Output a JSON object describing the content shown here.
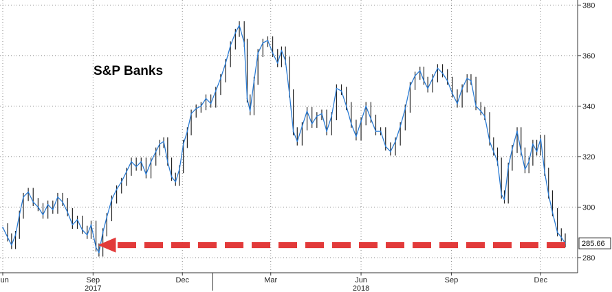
{
  "chart_data": {
    "type": "line",
    "title": "S&P Banks",
    "xlabel": "",
    "ylabel": "",
    "x_range": [
      "2017-06-01",
      "2018-12-26"
    ],
    "ylim": [
      274,
      382
    ],
    "y_ticks": [
      280,
      300,
      320,
      340,
      360,
      380
    ],
    "y_axis_side": "right",
    "grid": true,
    "x_ticks": [
      {
        "date": "2017-06-01",
        "label": "Jun"
      },
      {
        "date": "2017-09-01",
        "label": "Sep"
      },
      {
        "date": "2017-12-01",
        "label": "Dec"
      },
      {
        "date": "2018-03-01",
        "label": "Mar"
      },
      {
        "date": "2018-06-01",
        "label": "Jun"
      },
      {
        "date": "2018-09-01",
        "label": "Sep"
      },
      {
        "date": "2018-12-01",
        "label": "Dec"
      }
    ],
    "year_labels": [
      {
        "date": "2017-09-01",
        "label": "2017"
      },
      {
        "date": "2018-06-01",
        "label": "2018"
      }
    ],
    "series": [
      {
        "color": "#2a7bd4",
        "points": [
          [
            "2017-06-01",
            292
          ],
          [
            "2017-06-06",
            288
          ],
          [
            "2017-06-10",
            285
          ],
          [
            "2017-06-14",
            289
          ],
          [
            "2017-06-18",
            297
          ],
          [
            "2017-06-22",
            304
          ],
          [
            "2017-06-27",
            306
          ],
          [
            "2017-07-02",
            302
          ],
          [
            "2017-07-07",
            300
          ],
          [
            "2017-07-12",
            297
          ],
          [
            "2017-07-17",
            301
          ],
          [
            "2017-07-22",
            299
          ],
          [
            "2017-07-27",
            304
          ],
          [
            "2017-08-01",
            302
          ],
          [
            "2017-08-06",
            298
          ],
          [
            "2017-08-11",
            293
          ],
          [
            "2017-08-16",
            295
          ],
          [
            "2017-08-21",
            291
          ],
          [
            "2017-08-26",
            289
          ],
          [
            "2017-08-30",
            293
          ],
          [
            "2017-09-04",
            284
          ],
          [
            "2017-09-07",
            282
          ],
          [
            "2017-09-11",
            290
          ],
          [
            "2017-09-15",
            296
          ],
          [
            "2017-09-20",
            303
          ],
          [
            "2017-09-25",
            307
          ],
          [
            "2017-09-30",
            310
          ],
          [
            "2017-10-05",
            314
          ],
          [
            "2017-10-10",
            318
          ],
          [
            "2017-10-15",
            316
          ],
          [
            "2017-10-20",
            318
          ],
          [
            "2017-10-25",
            313
          ],
          [
            "2017-10-30",
            318
          ],
          [
            "2017-11-04",
            322
          ],
          [
            "2017-11-08",
            325
          ],
          [
            "2017-11-12",
            326
          ],
          [
            "2017-11-16",
            318
          ],
          [
            "2017-11-20",
            312
          ],
          [
            "2017-11-24",
            310
          ],
          [
            "2017-11-28",
            315
          ],
          [
            "2017-12-02",
            325
          ],
          [
            "2017-12-06",
            330
          ],
          [
            "2017-12-10",
            337
          ],
          [
            "2017-12-15",
            339
          ],
          [
            "2017-12-20",
            340
          ],
          [
            "2017-12-25",
            343
          ],
          [
            "2017-12-30",
            341
          ],
          [
            "2018-01-04",
            346
          ],
          [
            "2018-01-09",
            351
          ],
          [
            "2018-01-14",
            357
          ],
          [
            "2018-01-19",
            364
          ],
          [
            "2018-01-24",
            369
          ],
          [
            "2018-01-28",
            372
          ],
          [
            "2018-02-02",
            365
          ],
          [
            "2018-02-05",
            343
          ],
          [
            "2018-02-08",
            338
          ],
          [
            "2018-02-12",
            350
          ],
          [
            "2018-02-16",
            361
          ],
          [
            "2018-02-21",
            365
          ],
          [
            "2018-02-26",
            366
          ],
          [
            "2018-03-03",
            361
          ],
          [
            "2018-03-08",
            357
          ],
          [
            "2018-03-12",
            362
          ],
          [
            "2018-03-16",
            358
          ],
          [
            "2018-03-20",
            345
          ],
          [
            "2018-03-24",
            330
          ],
          [
            "2018-03-28",
            326
          ],
          [
            "2018-04-02",
            332
          ],
          [
            "2018-04-07",
            338
          ],
          [
            "2018-04-12",
            333
          ],
          [
            "2018-04-17",
            336
          ],
          [
            "2018-04-22",
            337
          ],
          [
            "2018-04-27",
            330
          ],
          [
            "2018-05-02",
            336
          ],
          [
            "2018-05-07",
            347
          ],
          [
            "2018-05-12",
            346
          ],
          [
            "2018-05-17",
            340
          ],
          [
            "2018-05-22",
            333
          ],
          [
            "2018-05-27",
            328
          ],
          [
            "2018-06-01",
            334
          ],
          [
            "2018-06-06",
            340
          ],
          [
            "2018-06-11",
            335
          ],
          [
            "2018-06-16",
            330
          ],
          [
            "2018-06-21",
            330
          ],
          [
            "2018-06-26",
            324
          ],
          [
            "2018-07-01",
            322
          ],
          [
            "2018-07-06",
            326
          ],
          [
            "2018-07-11",
            332
          ],
          [
            "2018-07-16",
            339
          ],
          [
            "2018-07-21",
            348
          ],
          [
            "2018-07-26",
            352
          ],
          [
            "2018-07-31",
            354
          ],
          [
            "2018-08-04",
            350
          ],
          [
            "2018-08-08",
            347
          ],
          [
            "2018-08-13",
            351
          ],
          [
            "2018-08-18",
            355
          ],
          [
            "2018-08-23",
            353
          ],
          [
            "2018-08-28",
            350
          ],
          [
            "2018-09-02",
            345
          ],
          [
            "2018-09-07",
            341
          ],
          [
            "2018-09-12",
            347
          ],
          [
            "2018-09-17",
            351
          ],
          [
            "2018-09-21",
            350
          ],
          [
            "2018-09-26",
            340
          ],
          [
            "2018-10-01",
            338
          ],
          [
            "2018-10-05",
            336
          ],
          [
            "2018-10-10",
            326
          ],
          [
            "2018-10-14",
            322
          ],
          [
            "2018-10-18",
            318
          ],
          [
            "2018-10-22",
            305
          ],
          [
            "2018-10-25",
            303
          ],
          [
            "2018-10-29",
            316
          ],
          [
            "2018-11-02",
            323
          ],
          [
            "2018-11-07",
            330
          ],
          [
            "2018-11-11",
            322
          ],
          [
            "2018-11-15",
            315
          ],
          [
            "2018-11-19",
            318
          ],
          [
            "2018-11-23",
            325
          ],
          [
            "2018-11-27",
            322
          ],
          [
            "2018-12-01",
            327
          ],
          [
            "2018-12-05",
            314
          ],
          [
            "2018-12-09",
            305
          ],
          [
            "2018-12-13",
            298
          ],
          [
            "2018-12-18",
            290
          ],
          [
            "2018-12-22",
            288
          ],
          [
            "2018-12-26",
            285.66
          ]
        ]
      }
    ],
    "annotations": [
      {
        "type": "horizontal-dashed-arrow",
        "color": "#e23a3a",
        "y": 285,
        "from_date": "2018-12-26",
        "to_date": "2017-09-06"
      }
    ],
    "last_value": {
      "label": "285.66",
      "value": 285.66
    }
  }
}
